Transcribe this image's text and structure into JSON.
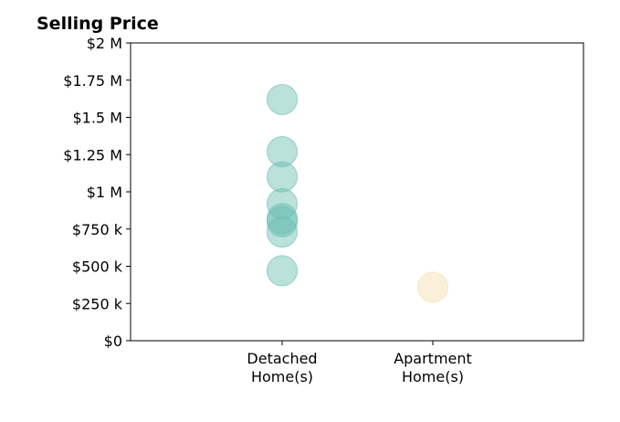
{
  "chart_data": {
    "type": "scatter",
    "title": "Selling Price",
    "xlabel": "",
    "ylabel": "",
    "categories": [
      "Detached\nHome(s)",
      "Apartment\nHome(s)"
    ],
    "ylim": [
      0,
      2000000
    ],
    "y_ticks": [
      {
        "value": 0,
        "label": "$0"
      },
      {
        "value": 250000,
        "label": "$250 k"
      },
      {
        "value": 500000,
        "label": "$500 k"
      },
      {
        "value": 750000,
        "label": "$750 k"
      },
      {
        "value": 1000000,
        "label": "$1 M"
      },
      {
        "value": 1250000,
        "label": "$1.25 M"
      },
      {
        "value": 1500000,
        "label": "$1.5 M"
      },
      {
        "value": 1750000,
        "label": "$1.75 M"
      },
      {
        "value": 2000000,
        "label": "$2 M"
      }
    ],
    "grid": false,
    "legend": "none",
    "series": [
      {
        "category_index": 0,
        "color": "#69bdb0",
        "values": [
          1620000,
          1270000,
          1100000,
          920000,
          820000,
          800000,
          730000,
          470000
        ]
      },
      {
        "category_index": 1,
        "color": "#f5deab",
        "values": [
          360000
        ]
      }
    ]
  }
}
